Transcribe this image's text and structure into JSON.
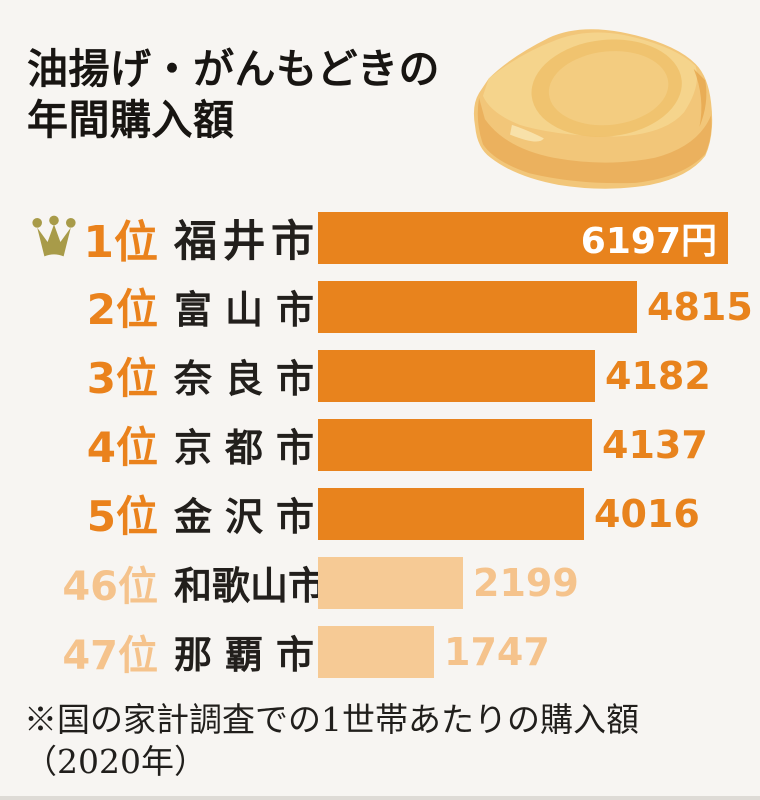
{
  "title": {
    "line1": "油揚げ・がんもどきの",
    "line2": "年間購入額"
  },
  "footnote": {
    "line1": "※国の家計調査での1世帯あたりの購入額",
    "line2": "（2020年）"
  },
  "icons": {
    "crown": "crown-icon",
    "tofu": "aburaage-illustration"
  },
  "colors": {
    "background": "#f7f5f2",
    "bar_dark": "#e8831d",
    "bar_light": "#f6ca95",
    "rank_text_dark": "#ea821c",
    "rank_text_light": "#f5c38c",
    "value_inside": "#ffffff",
    "city_text": "#221f1c",
    "title_text": "#181512",
    "crown_gold": "#a89b49",
    "tofu_main": "#f2c679"
  },
  "rows": [
    {
      "rank": "1位",
      "city": "福井市",
      "value": 6197,
      "label": "6197円",
      "tier": "top",
      "crown": true
    },
    {
      "rank": "2位",
      "city": "富山市",
      "value": 4815,
      "label": "4815",
      "tier": "top",
      "crown": false
    },
    {
      "rank": "3位",
      "city": "奈良市",
      "value": 4182,
      "label": "4182",
      "tier": "top",
      "crown": false
    },
    {
      "rank": "4位",
      "city": "京都市",
      "value": 4137,
      "label": "4137",
      "tier": "top",
      "crown": false
    },
    {
      "rank": "5位",
      "city": "金沢市",
      "value": 4016,
      "label": "4016",
      "tier": "top",
      "crown": false
    },
    {
      "rank": "46位",
      "city": "和歌山市",
      "value": 2199,
      "label": "2199",
      "tier": "bottom",
      "crown": false
    },
    {
      "rank": "47位",
      "city": "那覇市",
      "value": 1747,
      "label": "1747",
      "tier": "bottom",
      "crown": false
    }
  ],
  "chart_data": {
    "type": "bar",
    "orientation": "horizontal",
    "title": "油揚げ・がんもどきの年間購入額",
    "categories": [
      "福井市",
      "富山市",
      "奈良市",
      "京都市",
      "金沢市",
      "和歌山市",
      "那覇市"
    ],
    "ranks": [
      1,
      2,
      3,
      4,
      5,
      46,
      47
    ],
    "values": [
      6197,
      4815,
      4182,
      4137,
      4016,
      2199,
      1747
    ],
    "value_labels": [
      "6197円",
      "4815",
      "4182",
      "4137",
      "4016",
      "2199",
      "1747"
    ],
    "unit": "円",
    "xlim": [
      0,
      6197
    ],
    "grid": false,
    "legend": false,
    "annotation": "※国の家計調査での1世帯あたりの購入額（2020年）"
  }
}
